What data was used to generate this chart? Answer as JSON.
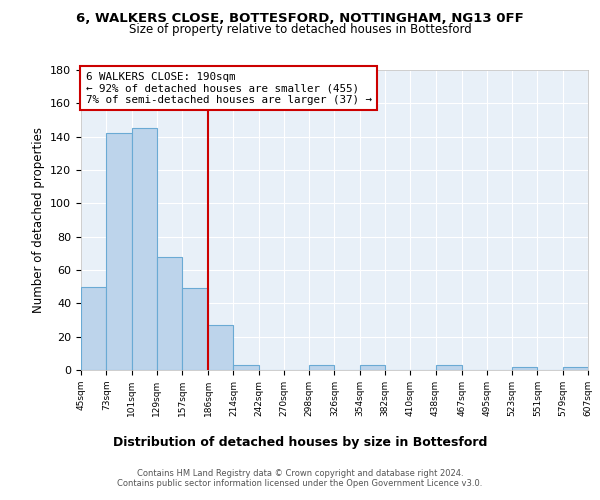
{
  "title_line1": "6, WALKERS CLOSE, BOTTESFORD, NOTTINGHAM, NG13 0FF",
  "title_line2": "Size of property relative to detached houses in Bottesford",
  "xlabel": "Distribution of detached houses by size in Bottesford",
  "ylabel": "Number of detached properties",
  "bin_edges": [
    45,
    73,
    101,
    129,
    157,
    186,
    214,
    242,
    270,
    298,
    326,
    354,
    382,
    410,
    438,
    467,
    495,
    523,
    551,
    579,
    607
  ],
  "bar_heights": [
    50,
    142,
    145,
    68,
    49,
    27,
    3,
    0,
    0,
    3,
    0,
    3,
    0,
    0,
    3,
    0,
    0,
    2,
    0,
    2
  ],
  "bar_color": "#bdd4eb",
  "bar_edge_color": "#6aaad4",
  "property_line_x": 186,
  "annotation_text_line1": "6 WALKERS CLOSE: 190sqm",
  "annotation_text_line2": "← 92% of detached houses are smaller (455)",
  "annotation_text_line3": "7% of semi-detached houses are larger (37) →",
  "annotation_box_color": "#ffffff",
  "annotation_box_edge": "#cc0000",
  "vline_color": "#cc0000",
  "ylim": [
    0,
    180
  ],
  "yticks": [
    0,
    20,
    40,
    60,
    80,
    100,
    120,
    140,
    160,
    180
  ],
  "tick_labels": [
    "45sqm",
    "73sqm",
    "101sqm",
    "129sqm",
    "157sqm",
    "186sqm",
    "214sqm",
    "242sqm",
    "270sqm",
    "298sqm",
    "326sqm",
    "354sqm",
    "382sqm",
    "410sqm",
    "438sqm",
    "467sqm",
    "495sqm",
    "523sqm",
    "551sqm",
    "579sqm",
    "607sqm"
  ],
  "footer_line1": "Contains HM Land Registry data © Crown copyright and database right 2024.",
  "footer_line2": "Contains public sector information licensed under the Open Government Licence v3.0.",
  "fig_bg_color": "#ffffff",
  "plot_bg_color": "#e8f0f8",
  "grid_color": "#ffffff"
}
